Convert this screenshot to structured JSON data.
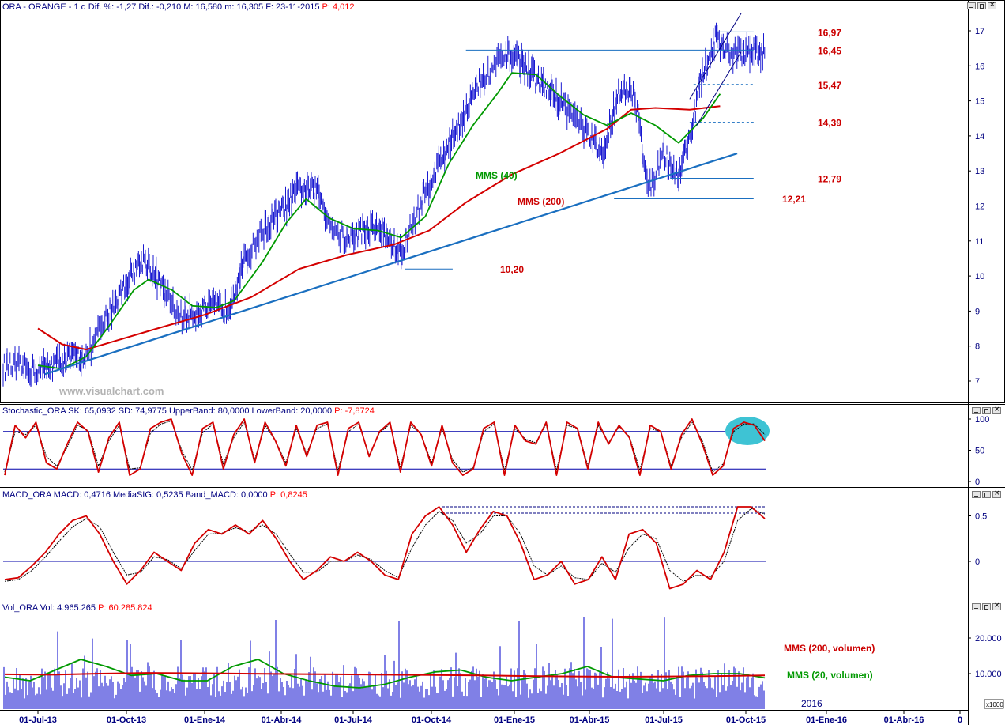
{
  "colors": {
    "price": "#0000cc",
    "mms200": "#d40000",
    "mms40": "#009900",
    "trend": "#1a6fc0",
    "band": "#0000aa",
    "annot": "#cc0000",
    "header_red": "#ff0000",
    "header_blue": "#000080",
    "highlight": "#3ec3d4",
    "grid_axis": "#000000"
  },
  "price_panel": {
    "title_name": "ORA - ORANGE",
    "title_rest": " - 1 d Dif. %: -1,27 Dif.: -0,210 M: 16,580 m: 16,305 F: 23-11-2015 ",
    "title_p": "P: 4,012",
    "watermark": "www.visualchart.com",
    "label_mms40": "MMS (40)",
    "label_mms200": "MMS (200)",
    "levels": [
      "16,97",
      "16,45",
      "15,47",
      "14,39",
      "12,79",
      "12,21",
      "10,20"
    ]
  },
  "stoch_panel": {
    "title_black": "Stochastic_ORA SK: 65,0932 SD: 74,9775 UpperBand: 80,0000 LowerBand: 20,0000 ",
    "title_p": "P: -7,8724"
  },
  "macd_panel": {
    "title_black": "MACD_ORA MACD: 0,4716 MediaSIG: 0,5235 Band_MACD: 0,0000 ",
    "title_p": "P: 0,8245"
  },
  "vol_panel": {
    "title_black": "Vol_ORA Vol: 4.965.265 ",
    "title_p": "P: 60.285.824",
    "label_mms200": "MMS (200, volumen)",
    "label_mms20": "MMS (20, volumen)",
    "year_label": "2016",
    "unit_label": "x1000"
  },
  "chart_data": [
    {
      "type": "line",
      "name": "ORANGE daily price",
      "x_ticks": [
        "01-Jul-13",
        "01-Oct-13",
        "01-Ene-14",
        "01-Abr-14",
        "01-Jul-14",
        "01-Oct-14",
        "01-Ene-15",
        "01-Abr-15",
        "01-Jul-15",
        "01-Oct-15",
        "01-Ene-16",
        "01-Abr-16",
        "0"
      ],
      "y_ticks": [
        "7",
        "8",
        "9",
        "10",
        "11",
        "12",
        "13",
        "14",
        "15",
        "16",
        "17"
      ],
      "ylim": [
        6.6,
        17.5
      ],
      "series": [
        {
          "name": "MMS (40)",
          "values": [
            [
              "2013-07-01",
              7.45
            ],
            [
              "2013-08-01",
              7.35
            ],
            [
              "2013-09-01",
              7.7
            ],
            [
              "2013-10-01",
              8.6
            ],
            [
              "2013-11-01",
              9.6
            ],
            [
              "2013-11-20",
              9.9
            ],
            [
              "2013-12-20",
              9.6
            ],
            [
              "2014-01-15",
              9.15
            ],
            [
              "2014-02-15",
              9.1
            ],
            [
              "2014-03-10",
              9.3
            ],
            [
              "2014-04-15",
              10.4
            ],
            [
              "2014-05-15",
              11.5
            ],
            [
              "2014-06-10",
              12.2
            ],
            [
              "2014-07-10",
              11.65
            ],
            [
              "2014-08-10",
              11.35
            ],
            [
              "2014-09-10",
              11.3
            ],
            [
              "2014-10-10",
              11.1
            ],
            [
              "2014-11-10",
              11.7
            ],
            [
              "2014-12-10",
              13.2
            ],
            [
              "2015-01-10",
              14.3
            ],
            [
              "2015-02-10",
              15.2
            ],
            [
              "2015-03-01",
              15.8
            ],
            [
              "2015-04-01",
              15.75
            ],
            [
              "2015-05-01",
              15.15
            ],
            [
              "2015-06-01",
              14.6
            ],
            [
              "2015-07-01",
              14.3
            ],
            [
              "2015-08-01",
              14.65
            ],
            [
              "2015-09-01",
              14.3
            ],
            [
              "2015-10-01",
              13.8
            ],
            [
              "2015-11-01",
              14.5
            ],
            [
              "2015-11-23",
              15.2
            ]
          ]
        },
        {
          "name": "MMS (200)",
          "values": [
            [
              "2013-07-01",
              8.5
            ],
            [
              "2013-08-01",
              8.05
            ],
            [
              "2013-09-01",
              7.9
            ],
            [
              "2013-10-01",
              8.1
            ],
            [
              "2013-12-01",
              8.5
            ],
            [
              "2014-02-01",
              8.9
            ],
            [
              "2014-04-01",
              9.4
            ],
            [
              "2014-06-01",
              10.2
            ],
            [
              "2014-08-01",
              10.6
            ],
            [
              "2014-10-01",
              10.9
            ],
            [
              "2014-11-15",
              11.3
            ],
            [
              "2015-01-01",
              12.1
            ],
            [
              "2015-03-01",
              12.9
            ],
            [
              "2015-05-01",
              13.5
            ],
            [
              "2015-07-01",
              14.2
            ],
            [
              "2015-08-01",
              14.75
            ],
            [
              "2015-09-01",
              14.8
            ],
            [
              "2015-10-15",
              14.75
            ],
            [
              "2015-11-23",
              14.85
            ]
          ]
        },
        {
          "name": "",
          "values": [
            [
              "2013-06-01",
              7.4
            ],
            [
              "2013-07-01",
              7.3
            ],
            [
              "2013-08-01",
              7.6
            ],
            [
              "2013-09-01",
              7.75
            ],
            [
              "2013-10-01",
              9.0
            ],
            [
              "2013-11-01",
              10.2
            ],
            [
              "2013-11-15",
              10.5
            ],
            [
              "2013-12-15",
              9.3
            ],
            [
              "2014-01-01",
              8.8
            ],
            [
              "2014-02-01",
              9.1
            ],
            [
              "2014-03-01",
              9.1
            ],
            [
              "2014-03-20",
              10.3
            ],
            [
              "2014-04-15",
              11.3
            ],
            [
              "2014-05-15",
              12.0
            ],
            [
              "2014-06-01",
              12.5
            ],
            [
              "2014-06-25",
              12.4
            ],
            [
              "2014-07-10",
              11.5
            ],
            [
              "2014-08-01",
              11.0
            ],
            [
              "2014-08-20",
              11.3
            ],
            [
              "2014-09-10",
              11.4
            ],
            [
              "2014-10-10",
              10.6
            ],
            [
              "2014-10-25",
              11.6
            ],
            [
              "2014-11-20",
              12.9
            ],
            [
              "2014-12-15",
              14.0
            ],
            [
              "2015-01-15",
              15.4
            ],
            [
              "2015-02-15",
              16.2
            ],
            [
              "2015-03-05",
              16.3
            ],
            [
              "2015-04-01",
              15.6
            ],
            [
              "2015-05-01",
              15.0
            ],
            [
              "2015-06-01",
              14.2
            ],
            [
              "2015-06-25",
              13.4
            ],
            [
              "2015-07-15",
              15.3
            ],
            [
              "2015-08-05",
              15.1
            ],
            [
              "2015-08-24",
              12.4
            ],
            [
              "2015-09-10",
              13.6
            ],
            [
              "2015-09-29",
              12.8
            ],
            [
              "2015-10-15",
              14.0
            ],
            [
              "2015-10-28",
              15.5
            ],
            [
              "2015-11-10",
              16.3
            ],
            [
              "2015-11-18",
              16.9
            ],
            [
              "2015-11-23",
              16.4
            ]
          ]
        },
        {
          "name": "",
          "values": [
            [
              "2013-07-10",
              7.2
            ],
            [
              "2015-12-15",
              13.5
            ]
          ]
        }
      ]
    },
    {
      "type": "line",
      "name": "Stochastic",
      "y_ticks": [
        "0",
        "50",
        "100"
      ],
      "ylim": [
        -5,
        110
      ],
      "bands": [
        80,
        20
      ],
      "series": [
        {
          "name": "SK",
          "values": [
            10,
            90,
            70,
            95,
            30,
            20,
            60,
            95,
            80,
            15,
            70,
            95,
            10,
            20,
            85,
            95,
            100,
            45,
            10,
            85,
            95,
            20,
            75,
            100,
            30,
            95,
            65,
            25,
            90,
            40,
            90,
            95,
            10,
            85,
            95,
            40,
            80,
            95,
            15,
            95,
            75,
            25,
            90,
            30,
            10,
            20,
            85,
            95,
            10,
            90,
            65,
            60,
            95,
            10,
            95,
            85,
            20,
            95,
            60,
            90,
            70,
            10,
            90,
            80,
            20,
            75,
            100,
            60,
            10,
            25,
            85,
            95,
            90,
            65
          ]
        },
        {
          "name": "SD",
          "values": [
            15,
            80,
            75,
            90,
            40,
            25,
            55,
            90,
            82,
            25,
            65,
            90,
            20,
            22,
            78,
            92,
            97,
            50,
            18,
            78,
            92,
            28,
            70,
            95,
            35,
            90,
            65,
            30,
            85,
            45,
            85,
            92,
            18,
            80,
            92,
            42,
            78,
            92,
            22,
            90,
            75,
            30,
            85,
            35,
            15,
            22,
            80,
            92,
            18,
            85,
            68,
            62,
            92,
            18,
            90,
            85,
            25,
            90,
            62,
            88,
            72,
            18,
            85,
            80,
            25,
            70,
            95,
            65,
            15,
            28,
            80,
            92,
            92,
            75
          ]
        }
      ]
    },
    {
      "type": "line",
      "name": "MACD",
      "y_ticks": [
        "0",
        "0,5"
      ],
      "ylim": [
        -0.45,
        0.7
      ],
      "series": [
        {
          "name": "MACD",
          "values": [
            -0.2,
            -0.18,
            -0.05,
            0.1,
            0.3,
            0.45,
            0.5,
            0.3,
            0.0,
            -0.25,
            -0.1,
            0.1,
            0.0,
            -0.1,
            0.2,
            0.35,
            0.3,
            0.4,
            0.3,
            0.45,
            0.25,
            0.0,
            -0.2,
            -0.1,
            0.05,
            0.0,
            0.1,
            0.0,
            -0.15,
            -0.2,
            0.3,
            0.5,
            0.6,
            0.4,
            0.1,
            0.35,
            0.55,
            0.5,
            0.2,
            -0.2,
            -0.15,
            0.0,
            -0.25,
            -0.2,
            0.05,
            -0.2,
            0.3,
            0.35,
            0.2,
            -0.3,
            -0.25,
            -0.1,
            -0.2,
            0.1,
            0.6,
            0.6,
            0.47
          ]
        },
        {
          "name": "MediaSIG",
          "values": [
            -0.22,
            -0.2,
            -0.1,
            0.05,
            0.22,
            0.38,
            0.47,
            0.38,
            0.1,
            -0.15,
            -0.12,
            0.05,
            0.02,
            -0.08,
            0.12,
            0.3,
            0.31,
            0.37,
            0.33,
            0.4,
            0.3,
            0.08,
            -0.12,
            -0.12,
            0.0,
            0.0,
            0.07,
            0.02,
            -0.1,
            -0.18,
            0.15,
            0.4,
            0.55,
            0.45,
            0.2,
            0.3,
            0.5,
            0.5,
            0.3,
            -0.05,
            -0.15,
            -0.05,
            -0.18,
            -0.2,
            -0.02,
            -0.12,
            0.15,
            0.3,
            0.25,
            -0.1,
            -0.22,
            -0.15,
            -0.17,
            0.0,
            0.45,
            0.58,
            0.52
          ]
        }
      ]
    },
    {
      "type": "bar",
      "name": "Volume",
      "y_ticks": [
        "10.000",
        "20.000"
      ],
      "ylim": [
        0,
        25000
      ],
      "series": [
        {
          "name": "MMS (200, volumen)",
          "values": [
            9800,
            9700,
            10000,
            10200,
            10100,
            10000,
            9900,
            9800,
            9700,
            9600,
            9500,
            9300,
            9200,
            9100,
            9200,
            9300,
            9500
          ]
        },
        {
          "name": "MMS (20, volumen)",
          "values": [
            9000,
            8000,
            11000,
            14000,
            12000,
            9500,
            10000,
            8000,
            8000,
            12000,
            14000,
            10000,
            8000,
            6500,
            6000,
            7000,
            9000,
            10500,
            11000,
            9000,
            8000,
            9000,
            10000,
            12000,
            9000,
            8500,
            8000,
            9500,
            10000,
            10000,
            8800
          ]
        }
      ]
    }
  ]
}
